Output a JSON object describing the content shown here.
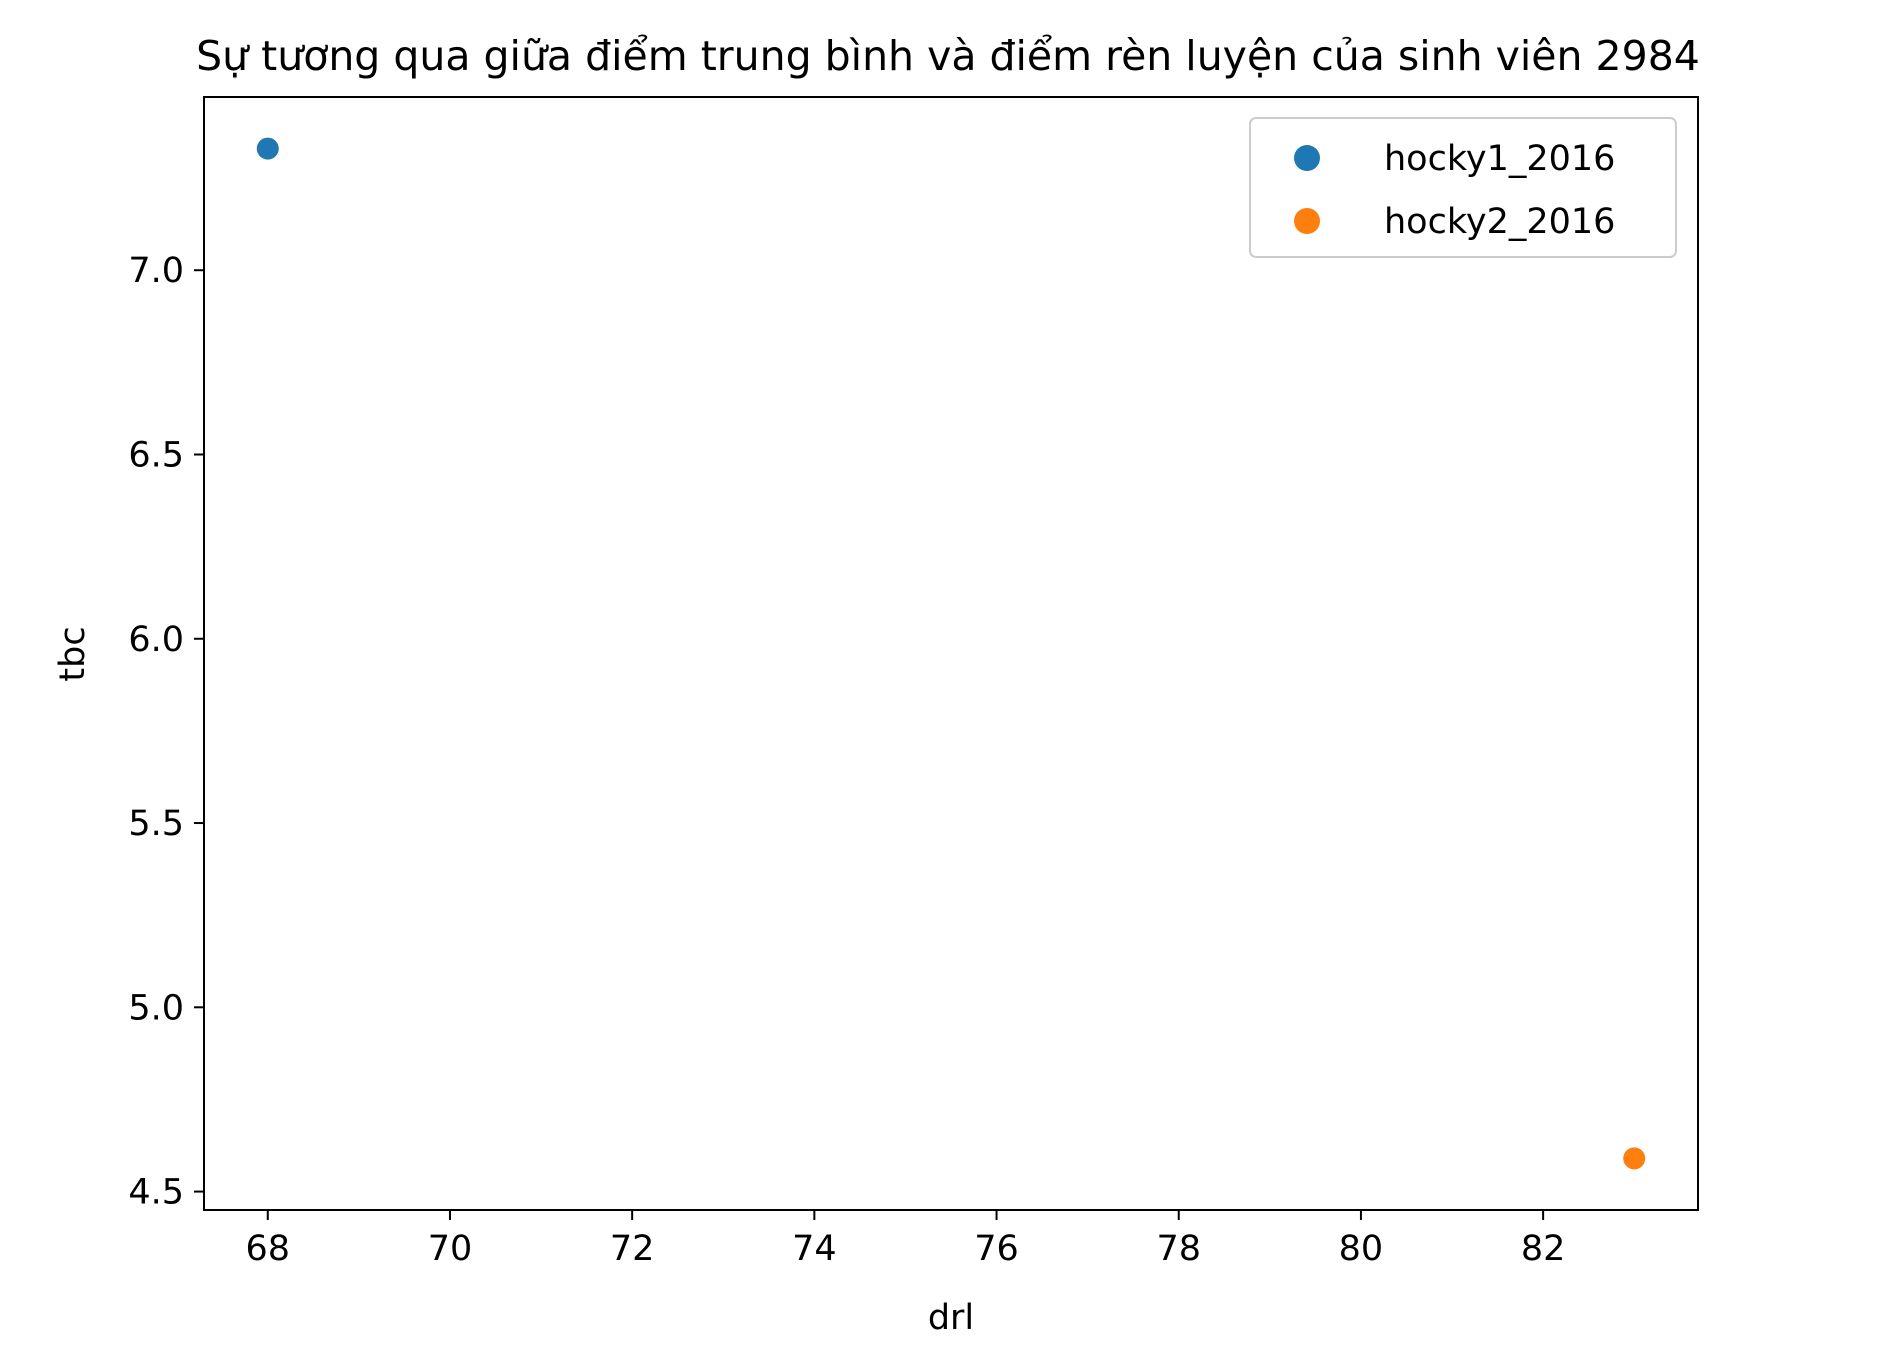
{
  "chart_data": {
    "type": "scatter",
    "title": "Sự tương qua giữa điểm trung bình và điểm rèn luyện của sinh viên 2984",
    "xlabel": "drl",
    "ylabel": "tbc",
    "xlim": [
      67.3,
      83.7
    ],
    "ylim": [
      4.45,
      7.47
    ],
    "xticks": [
      68,
      70,
      72,
      74,
      76,
      78,
      80,
      82
    ],
    "yticks": [
      4.5,
      5.0,
      5.5,
      6.0,
      6.5,
      7.0
    ],
    "grid": false,
    "legend_position": "top-right",
    "series": [
      {
        "name": "hocky1_2016",
        "color": "#1f77b4",
        "points": [
          {
            "x": 68,
            "y": 7.33
          }
        ]
      },
      {
        "name": "hocky2_2016",
        "color": "#ff7f0e",
        "points": [
          {
            "x": 83,
            "y": 4.59
          }
        ]
      }
    ]
  }
}
